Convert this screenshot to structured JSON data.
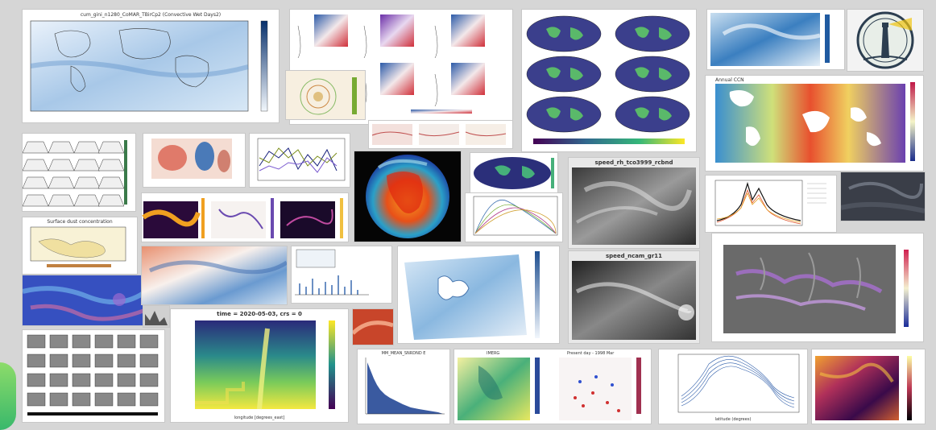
{
  "titles": {
    "cum_gini": "cum_gini_n1280_CoMAR_TBirCp2 (Convective Wet Days2)",
    "time_plot": "time = 2020-05-03, crs = 0",
    "speed_top": "speed_rh_tco3999_rcbnd",
    "speed_bottom": "speed_ncam_gr11",
    "surface_dust": "Surface dust concentration",
    "mm_mean_p": "MM_MEAN_SNRDND E",
    "imerg": "IMERG",
    "present_day": "Present day - 1998 Mar",
    "annual_cyc": "Annual CCN"
  },
  "axis": {
    "longitude": "longitude [degrees_east]",
    "latitude": "latitude (degrees)"
  },
  "colors": {
    "background": "#d6d6d6",
    "accent_green": "#4cbf6b"
  },
  "icons": {
    "logo": "lighthouse-logo-icon"
  }
}
